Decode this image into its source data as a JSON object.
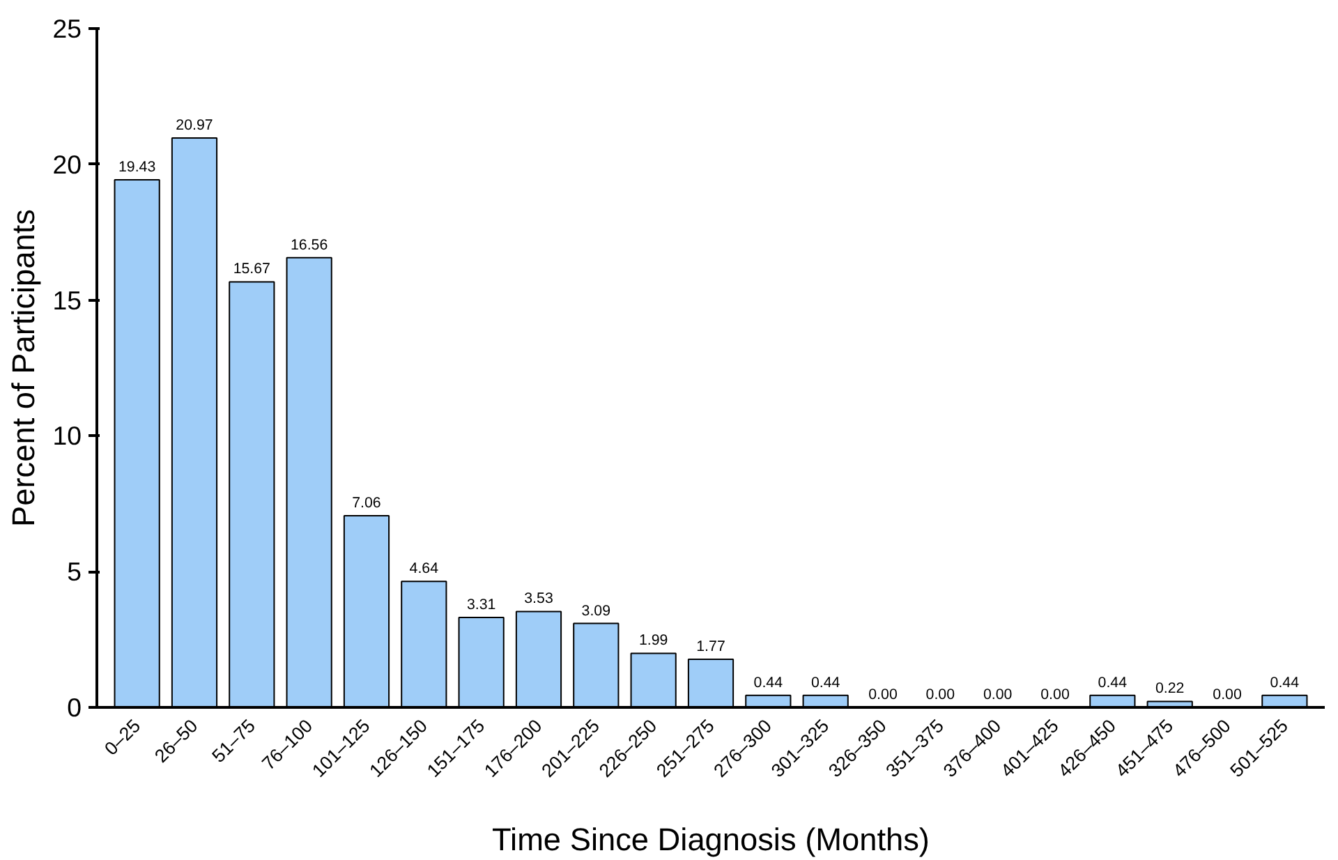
{
  "chart_data": {
    "type": "bar",
    "xlabel": "Time Since Diagnosis (Months)",
    "ylabel": "Percent of Participants",
    "categories": [
      "0–25",
      "26–50",
      "51–75",
      "76–100",
      "101–125",
      "126–150",
      "151–175",
      "176–200",
      "201–225",
      "226–250",
      "251–275",
      "276–300",
      "301–325",
      "326–350",
      "351–375",
      "376–400",
      "401–425",
      "426–450",
      "451–475",
      "476–500",
      "501–525"
    ],
    "values": [
      19.43,
      20.97,
      15.67,
      16.56,
      7.06,
      4.64,
      3.31,
      3.53,
      3.09,
      1.99,
      1.77,
      0.44,
      0.44,
      0,
      0,
      0,
      0,
      0.44,
      0.22,
      0,
      0.44
    ],
    "value_labels": [
      "19.43",
      "20.97",
      "15.67",
      "16.56",
      "7.06",
      "4.64",
      "3.31",
      "3.53",
      "3.09",
      "1.99",
      "1.77",
      "0.44",
      "0.44",
      "0.00",
      "0.00",
      "0.00",
      "0.00",
      "0.44",
      "0.22",
      "0.00",
      "0.44"
    ],
    "color": "#9fcdf8",
    "ylim": [
      0,
      25
    ],
    "yticks": [
      0,
      5,
      10,
      15,
      20,
      25
    ],
    "grid": false
  }
}
